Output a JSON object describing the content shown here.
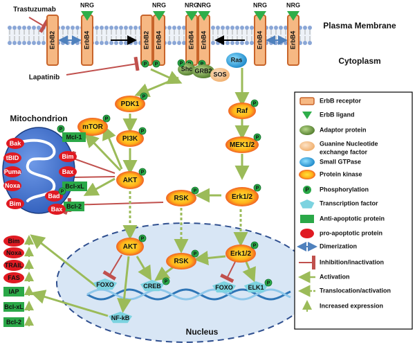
{
  "colors": {
    "membrane_head": "#8aa6d6",
    "receptor_fill": "#f6b883",
    "receptor_stroke": "#c8642a",
    "ligand": "#2fae4a",
    "kinase_inner": "#ffd21f",
    "kinase_outer": "#e8312a",
    "adaptor": "#6e9a3c",
    "gnef": "#f7c58f",
    "gtpase": "#1aa0d8",
    "phospho": "#2aa848",
    "tf": "#7cd3e0",
    "anti_apoptotic": "#2aa848",
    "pro_apoptotic": "#e01a22",
    "nucleus_fill": "#d8e6f5",
    "nucleus_stroke": "#2f4f8f",
    "mito_fill": "#4a7ad0",
    "activation": "#9bbb59",
    "inhibition": "#c0504d",
    "dimerization": "#4f81bd",
    "dna1": "#2e75b6",
    "dna2": "#8ec7ea"
  },
  "membrane": {
    "plasma_label": "Plasma Membrane",
    "cytoplasm_label": "Cytoplasm"
  },
  "drugs": {
    "trastuzumab": "Trastuzumab",
    "lapatinib": "Lapatinib"
  },
  "receptors": {
    "erbb2": "ErbB2",
    "erbb4": "ErbB4",
    "nrg": "NRG"
  },
  "adaptors": {
    "shc": "Shc",
    "grb2": "GRB2",
    "sos": "SOS",
    "ras": "Ras"
  },
  "kinases": {
    "pdk1": "PDK1",
    "mtor": "mTOR",
    "pi3k": "PI3K",
    "akt": "AKT",
    "raf": "Raf",
    "mek": "MEK1/2",
    "erk": "Erk1/2",
    "rsk": "RSK"
  },
  "phospho_letter": "P",
  "mitochondrion": {
    "title": "Mitochondrion",
    "outer_pro": [
      "Bak",
      "tBID",
      "Puma",
      "Noxa",
      "Bim"
    ],
    "inner_anti": [
      "Mcl-1",
      "Bcl-xL",
      "Bcl-2"
    ],
    "inner_pro": [
      "Bim",
      "Bax",
      "Bax"
    ],
    "bad": "Bad"
  },
  "nucleus": {
    "label": "Nucleus",
    "tfs": {
      "foxo": "FOXO",
      "creb": "CREB",
      "elk1": "ELK1",
      "nfkb": "NF-kB"
    }
  },
  "expression": {
    "pro": [
      "Bim",
      "Noxa",
      "TRAIL",
      "FAS"
    ],
    "anti": [
      "IAP",
      "Bcl-xL",
      "Bcl-2"
    ]
  },
  "legend": {
    "items": [
      {
        "icon": "receptor",
        "label": "ErbB receptor"
      },
      {
        "icon": "ligand",
        "label": "ErbB ligand"
      },
      {
        "icon": "adaptor",
        "label": "Adaptor protein"
      },
      {
        "icon": "gnef",
        "label": "Guanine Nucleotide"
      },
      {
        "icon": "gtpase",
        "label": "Small  GTPase"
      },
      {
        "icon": "kinase",
        "label": "Protein kinase"
      },
      {
        "icon": "phospho",
        "label": "Phosphorylation"
      },
      {
        "icon": "tf",
        "label": "Transcription factor"
      },
      {
        "icon": "anti",
        "label": "Anti-apoptotic protein"
      },
      {
        "icon": "pro",
        "label": "pro-apoptotic protein"
      },
      {
        "icon": "dimer",
        "label": "Dimerization"
      },
      {
        "icon": "inhib",
        "label": "Inhibition/inactivation"
      },
      {
        "icon": "act",
        "label": "Activation"
      },
      {
        "icon": "transloc",
        "label": "Translocation/activation"
      },
      {
        "icon": "incexp",
        "label": "Increased expression"
      }
    ],
    "gnef_line2": "exchange factor"
  }
}
